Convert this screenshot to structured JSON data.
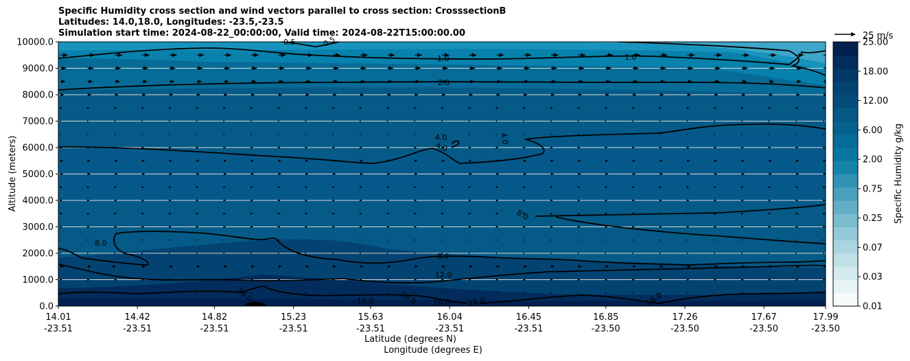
{
  "chart_data": {
    "type": "heatmap",
    "title_lines": [
      "Specific Humidity cross section and wind vectors parallel to cross section: CrosssectionB",
      "Latitudes: 14.0,18.0, Longitudes: -23.5,-23.5",
      "Simulation start time: 2024-08-22_00:00:00, Valid time: 2024-08-22T15:00:00.00"
    ],
    "ylabel": "Altitude (meters)",
    "xlabel_lat": "Latitude (degrees N)",
    "xlabel_lon": "Longitude (degrees E)",
    "ylim": [
      0,
      10000
    ],
    "yticks": [
      "0.0",
      "1000.0",
      "2000.0",
      "3000.0",
      "4000.0",
      "5000.0",
      "6000.0",
      "7000.0",
      "8000.0",
      "9000.0",
      "10000.0"
    ],
    "xticks": [
      {
        "lat": "14.01",
        "lon": "-23.51"
      },
      {
        "lat": "14.42",
        "lon": "-23.51"
      },
      {
        "lat": "14.82",
        "lon": "-23.51"
      },
      {
        "lat": "15.23",
        "lon": "-23.51"
      },
      {
        "lat": "15.63",
        "lon": "-23.51"
      },
      {
        "lat": "16.04",
        "lon": "-23.51"
      },
      {
        "lat": "16.45",
        "lon": "-23.51"
      },
      {
        "lat": "16.85",
        "lon": "-23.50"
      },
      {
        "lat": "17.26",
        "lon": "-23.50"
      },
      {
        "lat": "17.67",
        "lon": "-23.50"
      },
      {
        "lat": "17.99",
        "lon": "-23.50"
      }
    ],
    "colorbar": {
      "label": "Specific Humidity g/kg",
      "ticks": [
        "0.01",
        "0.03",
        "0.07",
        "0.25",
        "0.75",
        "2.00",
        "6.00",
        "12.00",
        "18.00",
        "25.00"
      ],
      "levels": 20,
      "colors": [
        "#f7fbfc",
        "#e8f3f6",
        "#d4eaef",
        "#c0e0e8",
        "#aad5e0",
        "#93c9d8",
        "#7bbccf",
        "#62aec6",
        "#48a0bd",
        "#2f92b3",
        "#1683a9",
        "#08769f",
        "#066b96",
        "#05618d",
        "#055784",
        "#044d7b",
        "#034372",
        "#033868",
        "#022c5c",
        "#012050"
      ]
    },
    "contour_labels": [
      "0.5",
      "0.5",
      "1.0",
      "1.0",
      "2.0",
      "4.0",
      "4.0",
      "4.0",
      "8.0",
      "8.0",
      "8.0",
      "12.0",
      "16.0",
      "16.0",
      "16.0",
      "16.0",
      "16.0",
      "16.0"
    ],
    "wind_reference_label": "25 m/s",
    "wind_vectors": [
      {
        "altitude": 9500,
        "speed": 9
      },
      {
        "altitude": 9000,
        "speed": 7
      },
      {
        "altitude": 8500,
        "speed": 6
      },
      {
        "altitude": 8000,
        "speed": 4
      },
      {
        "altitude": 7500,
        "speed": 2
      },
      {
        "altitude": 7000,
        "speed": 1
      },
      {
        "altitude": 6500,
        "speed": 1
      },
      {
        "altitude": 6000,
        "speed": 2
      },
      {
        "altitude": 5500,
        "speed": 3
      },
      {
        "altitude": 5000,
        "speed": 3
      },
      {
        "altitude": 4500,
        "speed": 2
      },
      {
        "altitude": 4000,
        "speed": 2
      },
      {
        "altitude": 3500,
        "speed": 2
      },
      {
        "altitude": 3000,
        "speed": 2
      },
      {
        "altitude": 2500,
        "speed": 1
      },
      {
        "altitude": 2000,
        "speed": 1
      },
      {
        "altitude": 1500,
        "speed": 4
      },
      {
        "altitude": 1000,
        "speed": 2
      },
      {
        "altitude": 500,
        "speed": 1
      }
    ]
  }
}
